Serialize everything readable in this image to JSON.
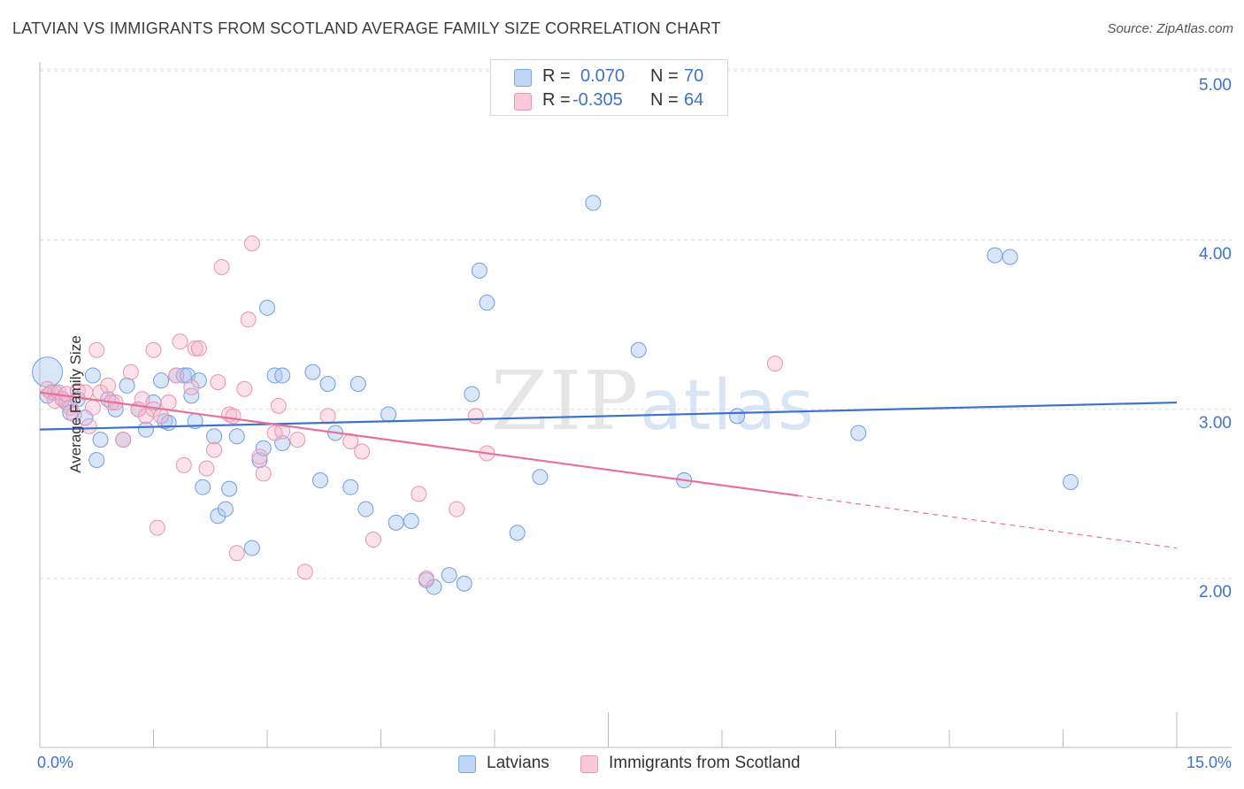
{
  "title": "LATVIAN VS IMMIGRANTS FROM SCOTLAND AVERAGE FAMILY SIZE CORRELATION CHART",
  "source": "Source: ZipAtlas.com",
  "watermark": {
    "zip": "ZIP",
    "atlas": "atlas"
  },
  "legend": {
    "rows": [
      {
        "r_label": "R =",
        "r_value": "0.070",
        "n_label": "N =",
        "n_value": "70"
      },
      {
        "r_label": "R =",
        "r_value": "-0.305",
        "n_label": "N =",
        "n_value": "64"
      }
    ]
  },
  "colors": {
    "blue": "#3d72d1",
    "pink": "#e8719a",
    "blue_fill": "#bfd6f5",
    "pink_fill": "#f9c9d8"
  },
  "chart_data": {
    "type": "scatter",
    "title": "LATVIAN VS IMMIGRANTS FROM SCOTLAND AVERAGE FAMILY SIZE CORRELATION CHART",
    "ylabel": "Average Family Size",
    "xlim": [
      0,
      15
    ],
    "ylim": [
      1.0,
      5.1
    ],
    "x_tick_labels": [
      "0.0%",
      "15.0%"
    ],
    "y_ticks": [
      2.0,
      3.0,
      4.0,
      5.0
    ],
    "y_tick_labels": [
      "2.00",
      "3.00",
      "4.00",
      "5.00"
    ],
    "grid": "horizontal dashed",
    "legend_position": "top-center",
    "series": [
      {
        "name": "Latvians",
        "color": "#3d72d1",
        "trend": {
          "x": [
            0,
            15
          ],
          "y": [
            2.88,
            3.04
          ]
        },
        "points": [
          [
            0.1,
            3.22
          ],
          [
            0.1,
            3.08
          ],
          [
            0.2,
            3.1
          ],
          [
            0.3,
            3.06
          ],
          [
            0.35,
            3.04
          ],
          [
            0.4,
            2.98
          ],
          [
            0.5,
            3.06
          ],
          [
            0.6,
            2.95
          ],
          [
            0.7,
            3.2
          ],
          [
            0.75,
            2.7
          ],
          [
            0.8,
            2.82
          ],
          [
            0.9,
            3.06
          ],
          [
            1.0,
            3.0
          ],
          [
            1.1,
            2.82
          ],
          [
            1.15,
            3.14
          ],
          [
            1.3,
            3.0
          ],
          [
            1.4,
            2.88
          ],
          [
            1.5,
            3.04
          ],
          [
            1.6,
            3.17
          ],
          [
            1.65,
            2.93
          ],
          [
            1.7,
            2.92
          ],
          [
            1.8,
            3.2
          ],
          [
            1.9,
            3.2
          ],
          [
            1.95,
            3.2
          ],
          [
            2.0,
            3.08
          ],
          [
            2.05,
            2.93
          ],
          [
            2.1,
            3.17
          ],
          [
            2.15,
            2.54
          ],
          [
            2.3,
            2.84
          ],
          [
            2.35,
            2.37
          ],
          [
            2.45,
            2.41
          ],
          [
            2.5,
            2.53
          ],
          [
            2.6,
            2.84
          ],
          [
            2.8,
            2.18
          ],
          [
            2.9,
            2.7
          ],
          [
            2.95,
            2.77
          ],
          [
            3.0,
            3.6
          ],
          [
            3.1,
            3.2
          ],
          [
            3.2,
            2.8
          ],
          [
            3.2,
            3.2
          ],
          [
            3.6,
            3.22
          ],
          [
            3.7,
            2.58
          ],
          [
            3.8,
            3.15
          ],
          [
            3.9,
            2.86
          ],
          [
            4.1,
            2.54
          ],
          [
            4.2,
            3.15
          ],
          [
            4.3,
            2.41
          ],
          [
            4.6,
            2.97
          ],
          [
            4.7,
            2.33
          ],
          [
            4.9,
            2.34
          ],
          [
            5.1,
            1.99
          ],
          [
            5.2,
            1.95
          ],
          [
            5.4,
            2.02
          ],
          [
            5.6,
            1.97
          ],
          [
            5.7,
            3.09
          ],
          [
            5.8,
            3.82
          ],
          [
            5.9,
            3.63
          ],
          [
            6.3,
            2.27
          ],
          [
            6.6,
            2.6
          ],
          [
            7.3,
            4.22
          ],
          [
            7.9,
            3.35
          ],
          [
            8.5,
            2.58
          ],
          [
            9.2,
            2.96
          ],
          [
            10.8,
            2.86
          ],
          [
            12.6,
            3.91
          ],
          [
            12.8,
            3.9
          ],
          [
            13.6,
            2.57
          ]
        ]
      },
      {
        "name": "Immigrants from Scotland",
        "color": "#e8719a",
        "trend": {
          "x": [
            0,
            10.0
          ],
          "y": [
            3.1,
            2.49
          ],
          "dashed_to": {
            "x": 15,
            "y": 2.18
          }
        },
        "points": [
          [
            0.1,
            3.12
          ],
          [
            0.15,
            3.1
          ],
          [
            0.2,
            3.05
          ],
          [
            0.25,
            3.1
          ],
          [
            0.3,
            3.06
          ],
          [
            0.35,
            3.09
          ],
          [
            0.4,
            3.01
          ],
          [
            0.45,
            2.97
          ],
          [
            0.5,
            3.11
          ],
          [
            0.6,
            3.1
          ],
          [
            0.65,
            2.9
          ],
          [
            0.7,
            3.01
          ],
          [
            0.75,
            3.35
          ],
          [
            0.8,
            3.1
          ],
          [
            0.9,
            3.14
          ],
          [
            0.95,
            3.04
          ],
          [
            1.0,
            3.04
          ],
          [
            1.1,
            2.82
          ],
          [
            1.2,
            3.22
          ],
          [
            1.3,
            3.0
          ],
          [
            1.35,
            3.06
          ],
          [
            1.4,
            2.96
          ],
          [
            1.5,
            3.0
          ],
          [
            1.5,
            3.35
          ],
          [
            1.55,
            2.3
          ],
          [
            1.6,
            2.96
          ],
          [
            1.7,
            3.04
          ],
          [
            1.8,
            3.2
          ],
          [
            1.85,
            3.4
          ],
          [
            1.9,
            2.67
          ],
          [
            2.0,
            3.13
          ],
          [
            2.05,
            3.36
          ],
          [
            2.1,
            3.36
          ],
          [
            2.2,
            2.65
          ],
          [
            2.3,
            2.76
          ],
          [
            2.35,
            3.16
          ],
          [
            2.4,
            3.84
          ],
          [
            2.5,
            2.97
          ],
          [
            2.55,
            2.96
          ],
          [
            2.6,
            2.15
          ],
          [
            2.7,
            3.12
          ],
          [
            2.75,
            3.53
          ],
          [
            2.8,
            3.98
          ],
          [
            2.9,
            2.72
          ],
          [
            2.95,
            2.62
          ],
          [
            3.1,
            2.86
          ],
          [
            3.15,
            3.02
          ],
          [
            3.2,
            2.87
          ],
          [
            3.4,
            2.82
          ],
          [
            3.5,
            2.04
          ],
          [
            3.8,
            2.96
          ],
          [
            4.1,
            2.81
          ],
          [
            4.25,
            2.75
          ],
          [
            4.4,
            2.23
          ],
          [
            5.0,
            2.5
          ],
          [
            5.1,
            2.0
          ],
          [
            5.5,
            2.41
          ],
          [
            5.75,
            2.96
          ],
          [
            5.9,
            2.74
          ],
          [
            9.7,
            3.27
          ]
        ]
      }
    ]
  },
  "bottom_legend": [
    {
      "label": "Latvians"
    },
    {
      "label": "Immigrants from Scotland"
    }
  ]
}
